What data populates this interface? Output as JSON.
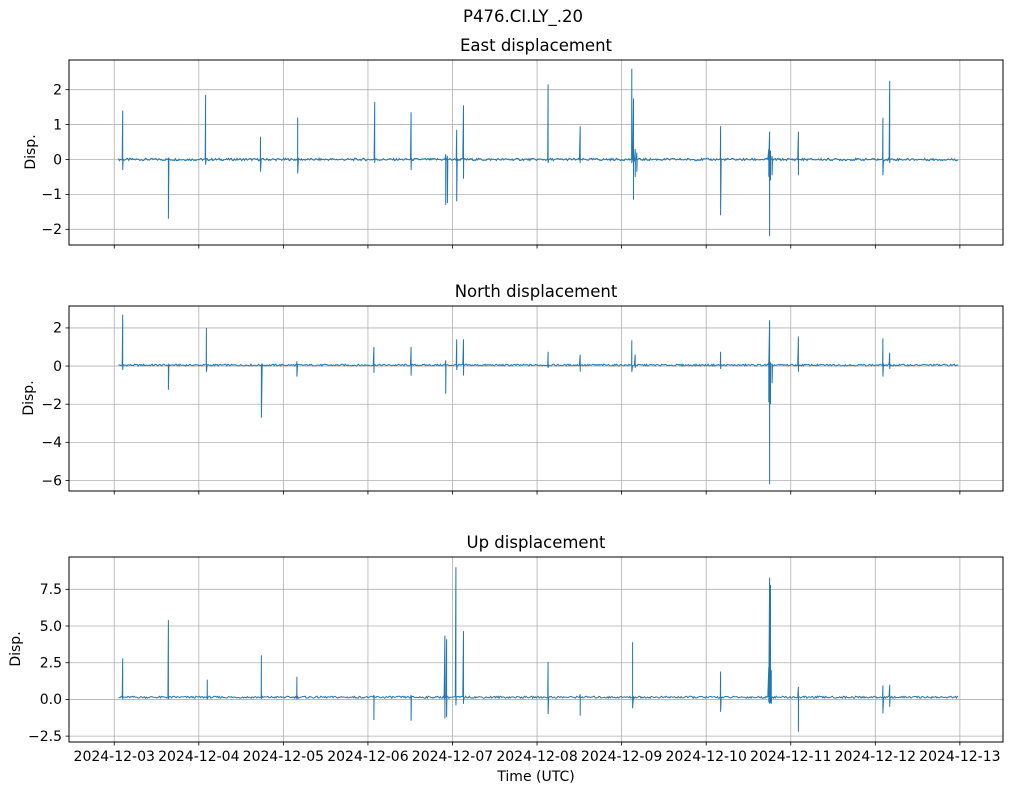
{
  "figure": {
    "suptitle": "P476.CI.LY_.20",
    "background": "#ffffff",
    "line_color": "#1f77b4",
    "grid_color": "#b0b0b0",
    "axis_color": "#000000"
  },
  "x_axis": {
    "label": "Time (UTC)",
    "tick_days": [
      0,
      1,
      2,
      3,
      4,
      5,
      6,
      7,
      8,
      9,
      10
    ],
    "tick_labels": [
      "2024-12-03",
      "2024-12-04",
      "2024-12-05",
      "2024-12-06",
      "2024-12-07",
      "2024-12-08",
      "2024-12-09",
      "2024-12-10",
      "2024-12-11",
      "2024-12-12",
      "2024-12-13"
    ],
    "xlim_days": [
      -0.535,
      10.51
    ],
    "data_range_days": [
      0.05,
      9.98
    ]
  },
  "chart_data": [
    {
      "type": "line",
      "series_name": "east",
      "title": "East displacement",
      "ylabel": "Disp.",
      "legend": "none",
      "grid": true,
      "yticks": [
        2,
        1,
        0,
        -1,
        -2
      ],
      "yticklabels": [
        "2",
        "1",
        "0",
        "−1",
        "−2"
      ],
      "ylim": [
        -2.45,
        2.85
      ],
      "baseline": 0.0,
      "noise": 0.035,
      "spikes": [
        {
          "t": 0.1,
          "hi": 1.4,
          "lo": -0.3
        },
        {
          "t": 0.64,
          "hi": 0.05,
          "lo": -1.7
        },
        {
          "t": 1.08,
          "hi": 1.85,
          "lo": -0.15
        },
        {
          "t": 1.73,
          "hi": 0.65,
          "lo": -0.35
        },
        {
          "t": 2.17,
          "hi": 1.2,
          "lo": -0.4
        },
        {
          "t": 3.08,
          "hi": 1.65,
          "lo": -0.1
        },
        {
          "t": 3.51,
          "hi": 1.35,
          "lo": -0.3
        },
        {
          "t": 3.92,
          "hi": 0.15,
          "lo": -1.3
        },
        {
          "t": 3.94,
          "hi": 0.1,
          "lo": -1.25
        },
        {
          "t": 4.05,
          "hi": 0.85,
          "lo": -1.2
        },
        {
          "t": 4.13,
          "hi": 1.55,
          "lo": -0.55
        },
        {
          "t": 5.13,
          "hi": 2.15,
          "lo": -0.1
        },
        {
          "t": 5.51,
          "hi": 0.95,
          "lo": -0.1
        },
        {
          "t": 6.12,
          "hi": 2.6,
          "lo": -0.1
        },
        {
          "t": 6.14,
          "hi": 1.75,
          "lo": -1.15
        },
        {
          "t": 6.16,
          "hi": 0.3,
          "lo": -0.5
        },
        {
          "t": 6.18,
          "hi": 0.2,
          "lo": -0.35
        },
        {
          "t": 7.17,
          "hi": 0.95,
          "lo": -1.6
        },
        {
          "t": 7.74,
          "hi": 0.3,
          "lo": -0.5
        },
        {
          "t": 7.75,
          "hi": 0.8,
          "lo": -2.2
        },
        {
          "t": 7.76,
          "hi": 0.25,
          "lo": -0.6
        },
        {
          "t": 7.78,
          "hi": 0.1,
          "lo": -0.45
        },
        {
          "t": 8.09,
          "hi": 0.8,
          "lo": -0.45
        },
        {
          "t": 9.09,
          "hi": 1.2,
          "lo": -0.45
        },
        {
          "t": 9.17,
          "hi": 2.25,
          "lo": -0.1
        }
      ]
    },
    {
      "type": "line",
      "series_name": "north",
      "title": "North displacement",
      "ylabel": "Disp.",
      "legend": "none",
      "grid": true,
      "yticks": [
        2,
        0,
        -2,
        -4,
        -6
      ],
      "yticklabels": [
        "2",
        "0",
        "−2",
        "−4",
        "−6"
      ],
      "ylim": [
        -6.55,
        3.15
      ],
      "baseline": 0.05,
      "noise": 0.05,
      "spikes": [
        {
          "t": 0.1,
          "hi": 2.7,
          "lo": -0.2
        },
        {
          "t": 0.64,
          "hi": 0.05,
          "lo": -1.25
        },
        {
          "t": 1.09,
          "hi": 2.0,
          "lo": -0.3
        },
        {
          "t": 1.74,
          "hi": 0.1,
          "lo": -2.7
        },
        {
          "t": 2.16,
          "hi": 0.25,
          "lo": -0.55
        },
        {
          "t": 3.07,
          "hi": 1.0,
          "lo": -0.35
        },
        {
          "t": 3.51,
          "hi": 1.0,
          "lo": -0.5
        },
        {
          "t": 3.92,
          "hi": 0.3,
          "lo": -1.45
        },
        {
          "t": 4.05,
          "hi": 1.4,
          "lo": -0.2
        },
        {
          "t": 4.13,
          "hi": 1.4,
          "lo": -0.5
        },
        {
          "t": 5.13,
          "hi": 0.75,
          "lo": -0.1
        },
        {
          "t": 5.51,
          "hi": 0.6,
          "lo": -0.3
        },
        {
          "t": 6.12,
          "hi": 1.35,
          "lo": -0.3
        },
        {
          "t": 6.16,
          "hi": 0.6,
          "lo": -0.1
        },
        {
          "t": 7.17,
          "hi": 0.75,
          "lo": -0.15
        },
        {
          "t": 7.74,
          "hi": 0.2,
          "lo": -1.9
        },
        {
          "t": 7.75,
          "hi": 2.4,
          "lo": -6.2
        },
        {
          "t": 7.76,
          "hi": 0.15,
          "lo": -2.0
        },
        {
          "t": 7.78,
          "hi": 0.1,
          "lo": -0.9
        },
        {
          "t": 8.09,
          "hi": 1.55,
          "lo": -0.3
        },
        {
          "t": 9.09,
          "hi": 1.45,
          "lo": -0.55
        },
        {
          "t": 9.17,
          "hi": 0.7,
          "lo": -0.15
        }
      ]
    },
    {
      "type": "line",
      "series_name": "up",
      "title": "Up displacement",
      "ylabel": "Disp.",
      "legend": "none",
      "grid": true,
      "yticks": [
        7.5,
        5.0,
        2.5,
        0.0,
        -2.5
      ],
      "yticklabels": [
        "7.5",
        "5.0",
        "2.5",
        "0.0",
        "−2.5"
      ],
      "ylim": [
        -2.9,
        9.7
      ],
      "baseline": 0.15,
      "noise": 0.07,
      "spikes": [
        {
          "t": 0.1,
          "hi": 2.8,
          "lo": 0.0
        },
        {
          "t": 0.64,
          "hi": 5.4,
          "lo": 0.0
        },
        {
          "t": 1.1,
          "hi": 1.35,
          "lo": 0.0
        },
        {
          "t": 1.74,
          "hi": 3.0,
          "lo": 0.05
        },
        {
          "t": 2.16,
          "hi": 1.55,
          "lo": 0.0
        },
        {
          "t": 3.07,
          "hi": 0.3,
          "lo": -1.4
        },
        {
          "t": 3.51,
          "hi": 0.3,
          "lo": -1.45
        },
        {
          "t": 3.91,
          "hi": 4.35,
          "lo": -1.3
        },
        {
          "t": 3.93,
          "hi": 4.1,
          "lo": -1.2
        },
        {
          "t": 4.04,
          "hi": 9.0,
          "lo": -0.4
        },
        {
          "t": 4.13,
          "hi": 4.65,
          "lo": -0.3
        },
        {
          "t": 5.13,
          "hi": 2.55,
          "lo": -1.0
        },
        {
          "t": 5.51,
          "hi": 0.35,
          "lo": -1.1
        },
        {
          "t": 6.13,
          "hi": 3.9,
          "lo": -0.6
        },
        {
          "t": 7.17,
          "hi": 1.9,
          "lo": -0.85
        },
        {
          "t": 7.74,
          "hi": 2.2,
          "lo": -0.2
        },
        {
          "t": 7.75,
          "hi": 8.3,
          "lo": -0.3
        },
        {
          "t": 7.76,
          "hi": 7.8,
          "lo": -0.25
        },
        {
          "t": 7.77,
          "hi": 2.0,
          "lo": -0.3
        },
        {
          "t": 8.09,
          "hi": 0.85,
          "lo": -2.2
        },
        {
          "t": 9.09,
          "hi": 0.95,
          "lo": -0.95
        },
        {
          "t": 9.17,
          "hi": 1.0,
          "lo": -0.5
        }
      ]
    }
  ]
}
